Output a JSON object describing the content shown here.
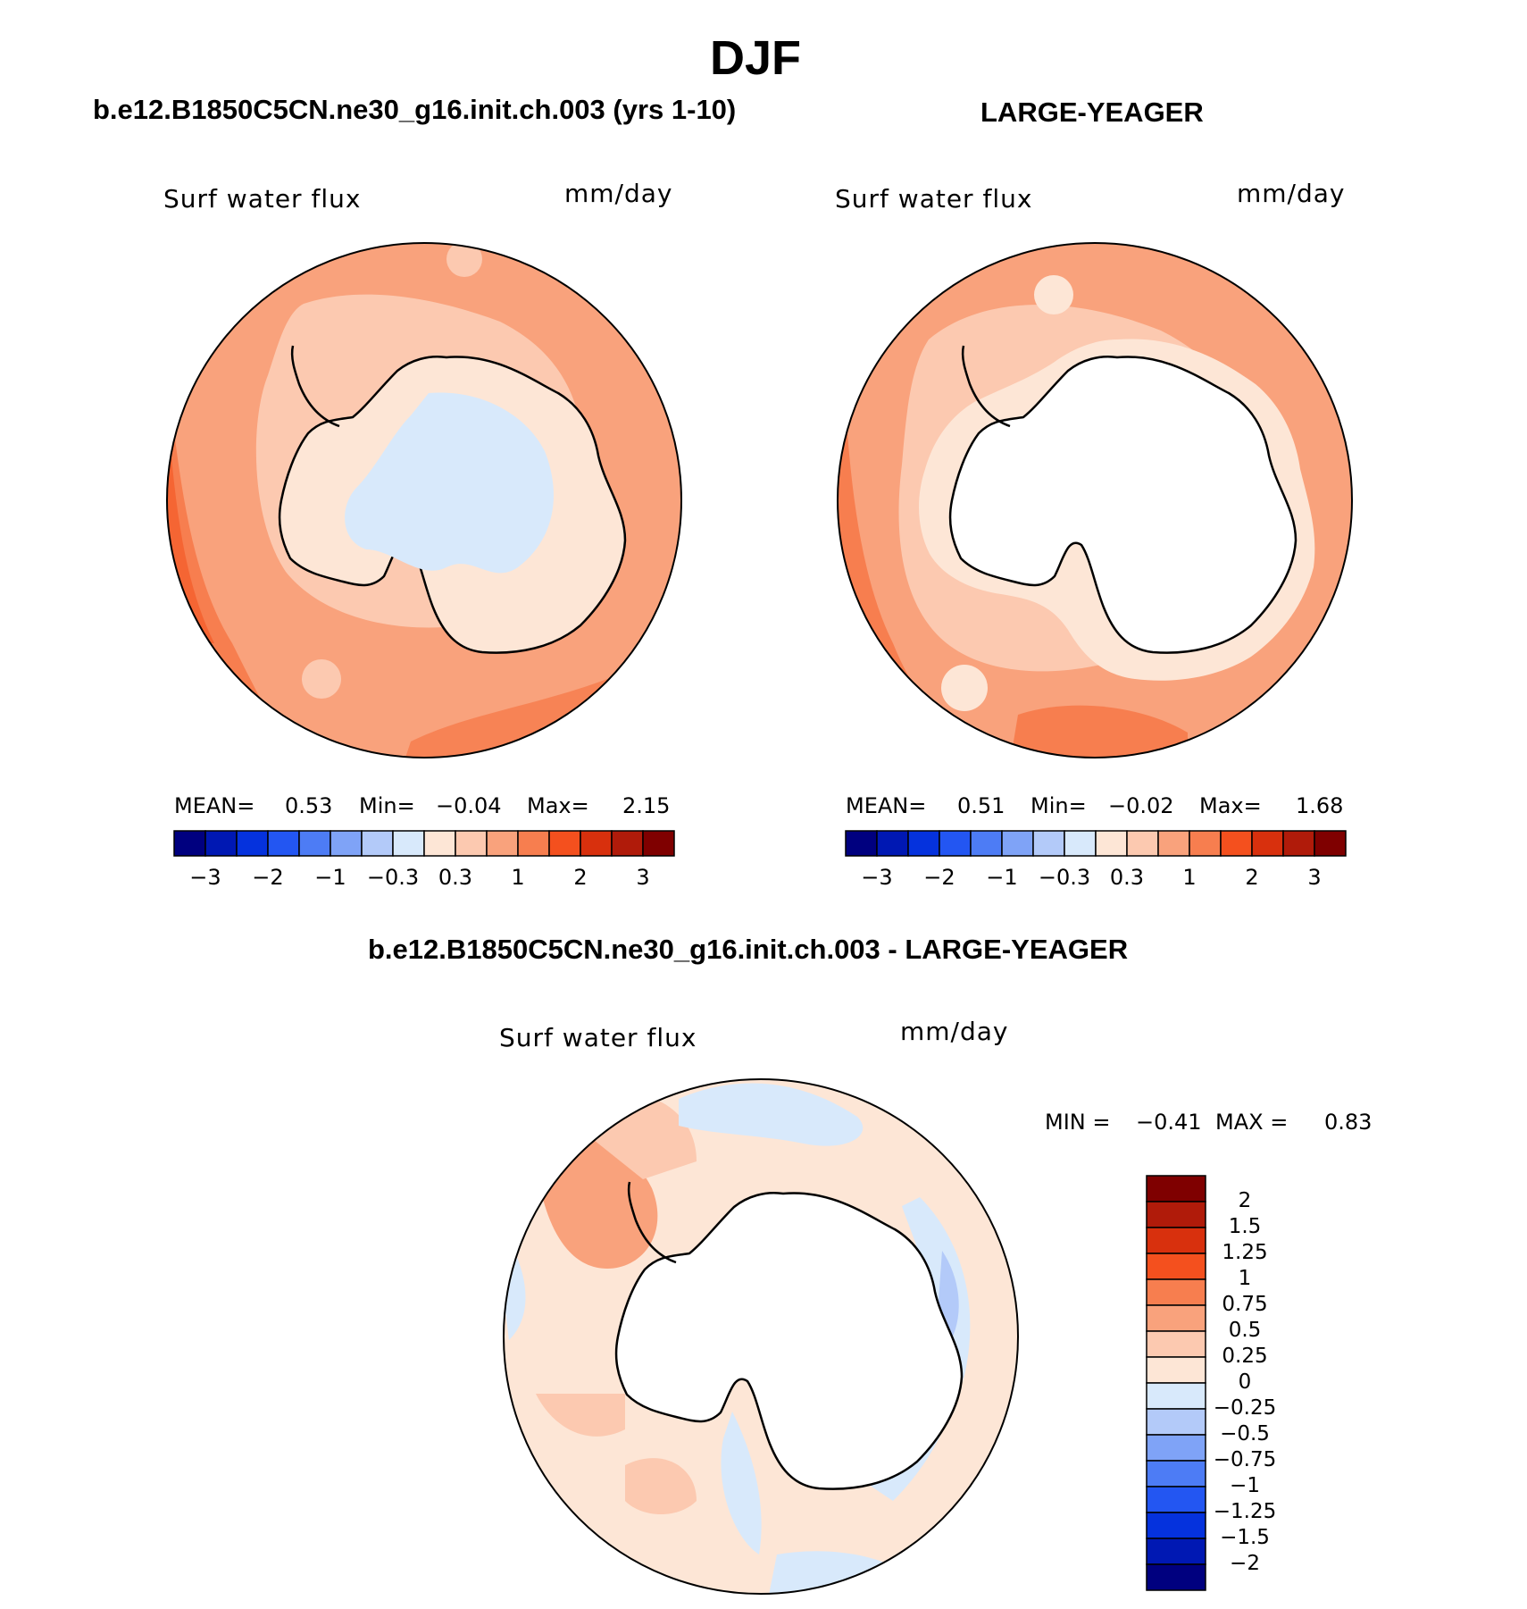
{
  "season_title": "DJF",
  "panels": [
    {
      "id": "model",
      "title": "b.e12.B1850C5CN.ne30_g16.init.ch.003 (yrs 1-10)",
      "variable_label": "Surf water flux",
      "units_label": "mm/day",
      "stats": {
        "mean_label": "MEAN=",
        "mean": "0.53",
        "min_label": "Min=",
        "min": "−0.04",
        "max_label": "Max=",
        "max": "2.15"
      },
      "dominant_range": "0.3 to 1 mm/day"
    },
    {
      "id": "obs",
      "title": "LARGE-YEAGER",
      "variable_label": "Surf water flux",
      "units_label": "mm/day",
      "stats": {
        "mean_label": "MEAN=",
        "mean": "0.51",
        "min_label": "Min=",
        "min": "−0.02",
        "max_label": "Max=",
        "max": "1.68"
      },
      "dominant_range": "0.3 to 1 mm/day"
    },
    {
      "id": "diff",
      "title": "b.e12.B1850C5CN.ne30_g16.init.ch.003 - LARGE-YEAGER",
      "variable_label": "Surf water flux",
      "units_label": "mm/day",
      "minmax": {
        "min_label": "MIN =",
        "min": "−0.41",
        "max_label": "MAX =",
        "max": "0.83"
      },
      "dominant_range": "-0.25 to 0.5 mm/day"
    }
  ],
  "colorbar_abs": {
    "colors": [
      "#00007f",
      "#0018b3",
      "#0532dd",
      "#2356f2",
      "#4d7cf5",
      "#7fa3f7",
      "#b3caf9",
      "#d8e9fb",
      "#fde6d6",
      "#fcc9b0",
      "#f9a27c",
      "#f77e4f",
      "#f4501e",
      "#d8300d",
      "#b01b0a",
      "#7f0000"
    ],
    "tick_labels": [
      "−3",
      "−2",
      "−1",
      "−0.3",
      "0.3",
      "1",
      "2",
      "3"
    ]
  },
  "colorbar_diff": {
    "colors_top_to_bottom": [
      "#7f0000",
      "#b01b0a",
      "#d8300d",
      "#f4501e",
      "#f77e4f",
      "#f9a27c",
      "#fcc9b0",
      "#fde6d6",
      "#d8e9fb",
      "#b3caf9",
      "#7fa3f7",
      "#4d7cf5",
      "#2356f2",
      "#0532dd",
      "#0018b3",
      "#00007f"
    ],
    "tick_labels": [
      "2",
      "1.5",
      "1.25",
      "1",
      "0.75",
      "0.5",
      "0.25",
      "0",
      "−0.25",
      "−0.5",
      "−0.75",
      "−1",
      "−1.25",
      "−1.5",
      "−2"
    ]
  },
  "map_colors": {
    "land": "#ffffff",
    "coast": "#000000",
    "land_fill_model": "#fde6d6",
    "land_inner_model": "#d8e9fb"
  }
}
